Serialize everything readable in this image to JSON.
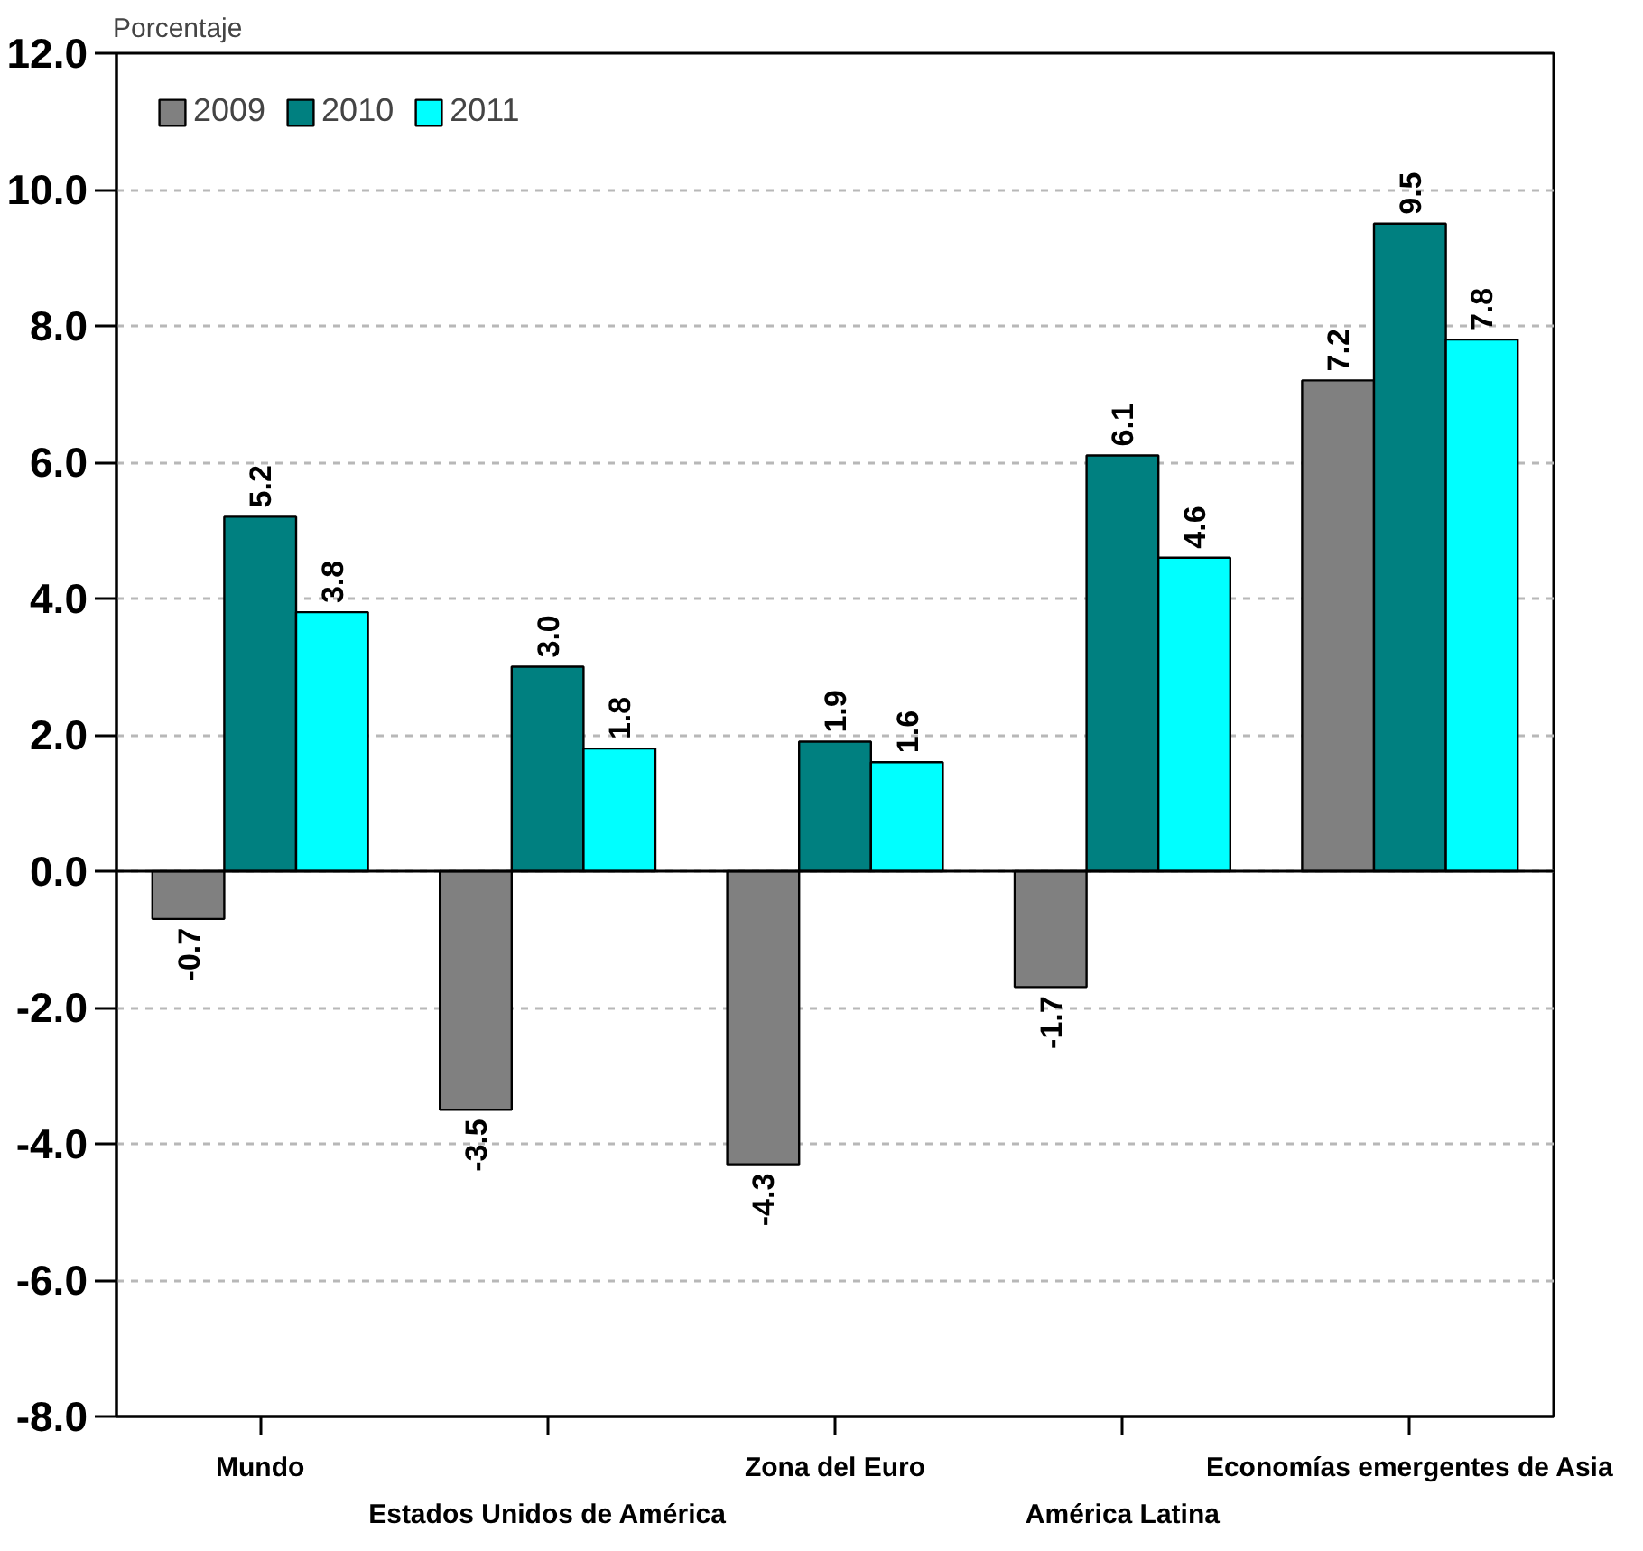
{
  "chart_data": {
    "type": "bar",
    "ylabel": "Porcentaje",
    "categories": [
      "Mundo",
      "Estados Unidos de América",
      "Zona del Euro",
      "América Latina",
      "Economías emergentes de Asia"
    ],
    "series": [
      {
        "name": "2009",
        "color": "#808080",
        "values": [
          -0.7,
          -3.5,
          -4.3,
          -1.7,
          7.2
        ],
        "value_labels": [
          "-0.7",
          "-3.5",
          "-4.3",
          "-1.7",
          "7.2"
        ]
      },
      {
        "name": "2010",
        "color": "#008080",
        "values": [
          5.2,
          3.0,
          1.9,
          6.1,
          9.5
        ],
        "value_labels": [
          "5.2",
          "3.0",
          "1.9",
          "6.1",
          "9.5"
        ]
      },
      {
        "name": "2011",
        "color": "#00ffff",
        "values": [
          3.8,
          1.8,
          1.6,
          4.6,
          7.8
        ],
        "value_labels": [
          "3.8",
          "1.8",
          "1.6",
          "4.6",
          "7.8"
        ]
      }
    ],
    "ylim": [
      -8,
      12
    ],
    "yticks": [
      {
        "value": -8,
        "label": "-8.0"
      },
      {
        "value": -6,
        "label": "-6.0"
      },
      {
        "value": -4,
        "label": "-4.0"
      },
      {
        "value": -2,
        "label": "-2.0"
      },
      {
        "value": 0,
        "label": "0.0"
      },
      {
        "value": 2,
        "label": "2.0"
      },
      {
        "value": 4,
        "label": "4.0"
      },
      {
        "value": 6,
        "label": "6.0"
      },
      {
        "value": 8,
        "label": "8.0"
      },
      {
        "value": 10,
        "label": "10.0"
      },
      {
        "value": 12,
        "label": "12.0"
      }
    ],
    "grid": "y",
    "legend": "top left"
  }
}
